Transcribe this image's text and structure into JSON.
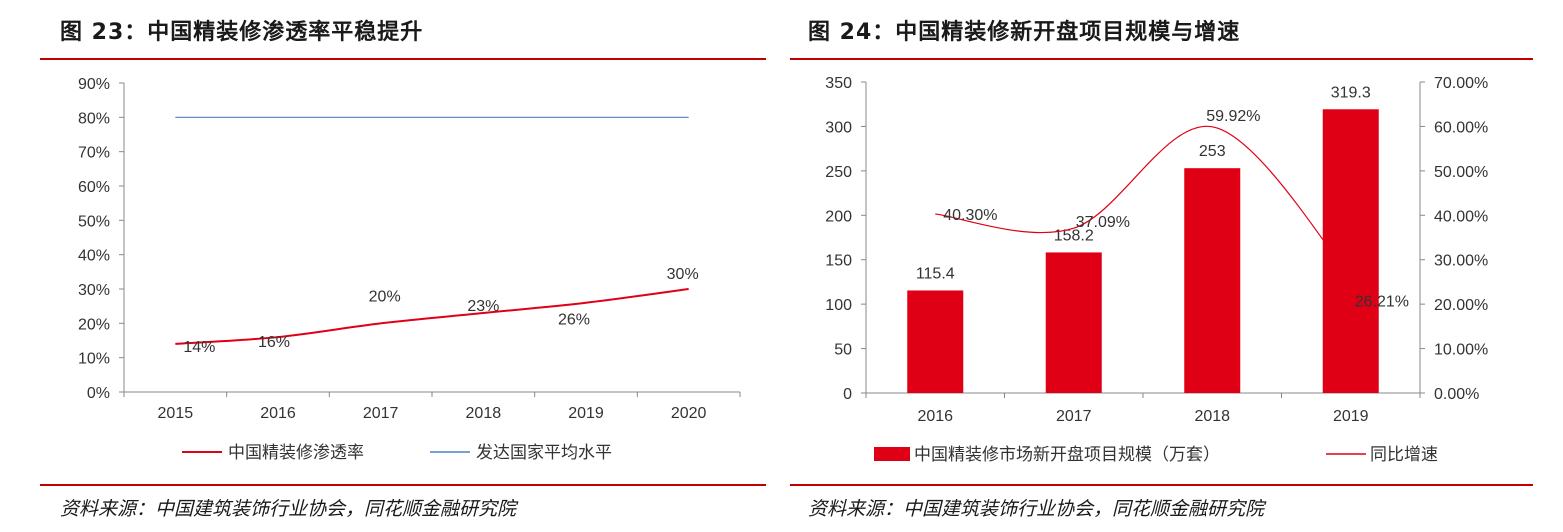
{
  "figures": [
    {
      "title": "图 23：中国精装修渗透率平稳提升",
      "source": "资料来源：中国建筑装饰行业协会，同花顺金融研究院"
    },
    {
      "title": "图 24：中国精装修新开盘项目规模与增速",
      "source": "资料来源：中国建筑装饰行业协会，同花顺金融研究院"
    }
  ],
  "colors": {
    "red": "#e00016",
    "blue": "#4f81bd",
    "rule": "#c00000",
    "axis": "#888888"
  },
  "chart_data": [
    {
      "type": "line",
      "title": "",
      "x": [
        "2015",
        "2016",
        "2017",
        "2018",
        "2019",
        "2020"
      ],
      "series": [
        {
          "name": "中国精装修渗透率",
          "values": [
            14,
            16,
            20,
            23,
            26,
            30
          ],
          "value_labels": [
            "14%",
            "16%",
            "20%",
            "23%",
            "26%",
            "30%"
          ],
          "color": "#e00016"
        },
        {
          "name": "发达国家平均水平",
          "values": [
            80,
            80,
            80,
            80,
            80,
            80
          ],
          "color": "#4f81bd"
        }
      ],
      "ylim": [
        0,
        90
      ],
      "yticks": [
        "0%",
        "10%",
        "20%",
        "30%",
        "40%",
        "50%",
        "60%",
        "70%",
        "80%",
        "90%"
      ],
      "grid": false,
      "legend": "bottom"
    },
    {
      "type": "bar",
      "title": "",
      "categories": [
        "2016",
        "2017",
        "2018",
        "2019"
      ],
      "series": [
        {
          "name": "中国精装修市场新开盘项目规模（万套）",
          "type": "bar",
          "axis": "left",
          "values": [
            115.4,
            158.2,
            253,
            319.3
          ],
          "value_labels": [
            "115.4",
            "158.2",
            "253",
            "319.3"
          ],
          "color": "#e00016"
        },
        {
          "name": "同比增速",
          "type": "line",
          "axis": "right",
          "values": [
            40.3,
            37.09,
            59.92,
            26.21
          ],
          "value_labels": [
            "40.30%",
            "37.09%",
            "59.92%",
            "26.21%"
          ],
          "color": "#e00016"
        }
      ],
      "ylim_left": [
        0,
        350
      ],
      "yticks_left": [
        "0",
        "50",
        "100",
        "150",
        "200",
        "250",
        "300",
        "350"
      ],
      "ylim_right": [
        0,
        70
      ],
      "yticks_right": [
        "0.00%",
        "10.00%",
        "20.00%",
        "30.00%",
        "40.00%",
        "50.00%",
        "60.00%",
        "70.00%"
      ],
      "grid": false,
      "legend": "bottom"
    }
  ]
}
